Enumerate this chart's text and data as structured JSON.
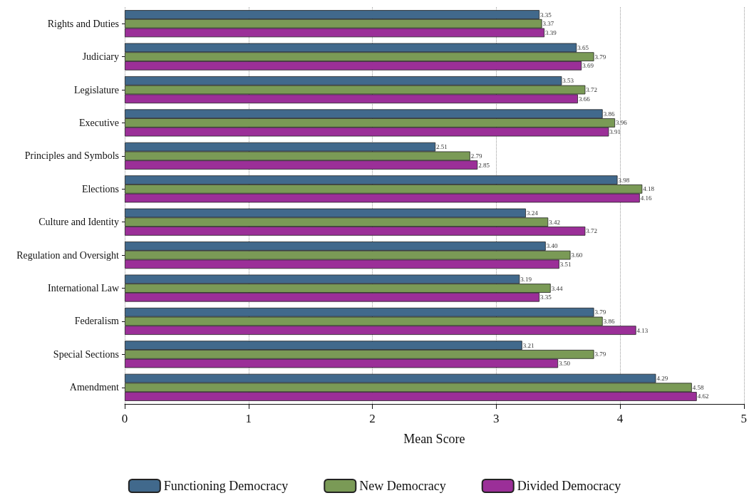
{
  "chart_data": {
    "type": "bar",
    "orientation": "horizontal",
    "xlabel": "Mean Score",
    "categories": [
      "Rights and Duties",
      "Judiciary",
      "Legislature",
      "Executive",
      "Principles and Symbols",
      "Elections",
      "Culture and Identity",
      "Regulation and Oversight",
      "International Law",
      "Federalism",
      "Special Sections",
      "Amendment"
    ],
    "series": [
      {
        "name": "Functioning Democracy",
        "color": "#41698c",
        "values": [
          3.35,
          3.65,
          3.53,
          3.86,
          2.51,
          3.98,
          3.24,
          3.4,
          3.19,
          3.79,
          3.21,
          4.29
        ],
        "value_labels": [
          "3.35",
          "3.65",
          "3.53",
          "3.86",
          "2.51",
          "3.98",
          "3.24",
          "3.40",
          "3.19",
          "3.79",
          "3.21",
          "4.29"
        ]
      },
      {
        "name": "New Democracy",
        "color": "#7a9a56",
        "values": [
          3.37,
          3.79,
          3.72,
          3.96,
          2.79,
          4.18,
          3.42,
          3.6,
          3.44,
          3.86,
          3.79,
          4.58
        ],
        "value_labels": [
          "3.37",
          "3.79",
          "3.72",
          "3.96",
          "2.79",
          "4.18",
          "3.42",
          "3.60",
          "3.44",
          "3.86",
          "3.79",
          "4.58"
        ]
      },
      {
        "name": "Divided Democracy",
        "color": "#9b2f98",
        "values": [
          3.39,
          3.69,
          3.66,
          3.91,
          2.85,
          4.16,
          3.72,
          3.51,
          3.35,
          4.13,
          3.5,
          4.62
        ],
        "value_labels": [
          "3.39",
          "3.69",
          "3.66",
          "3.91",
          "2.85",
          "4.16",
          "3.72",
          "3.51",
          "3.35",
          "4.13",
          "3.50",
          "4.62"
        ]
      }
    ],
    "xlim": [
      0,
      5
    ],
    "xticks": [
      0,
      1,
      2,
      3,
      4,
      5
    ],
    "grid": "x",
    "legend": "bottom"
  }
}
